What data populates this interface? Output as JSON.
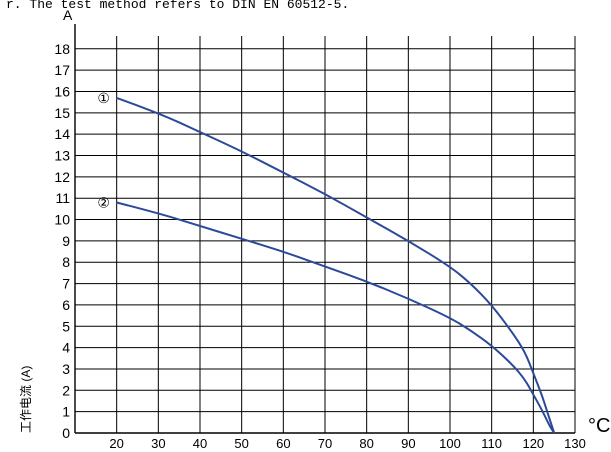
{
  "header_note": "r. The test method refers to DIN EN 60512-5.",
  "chart_data": {
    "type": "line",
    "y_unit_label": "A",
    "x_unit_label": "°C",
    "ylabel": "工作电流 (A)",
    "x_ticks": [
      20,
      30,
      40,
      50,
      60,
      70,
      80,
      90,
      100,
      110,
      120,
      130
    ],
    "y_ticks": [
      0,
      1,
      2,
      3,
      4,
      5,
      6,
      7,
      8,
      9,
      10,
      11,
      12,
      13,
      14,
      15,
      16,
      17,
      18
    ],
    "xlim": [
      10,
      130
    ],
    "ylim": [
      0,
      18.6
    ],
    "grid": true,
    "line_color": "#2b4a9a",
    "series": [
      {
        "name": "①",
        "x": [
          20,
          30,
          40,
          50,
          60,
          70,
          80,
          90,
          100,
          105,
          110,
          115,
          118,
          120,
          122,
          123,
          124,
          125
        ],
        "y": [
          15.7,
          15.0,
          14.1,
          13.2,
          12.2,
          11.2,
          10.1,
          9.0,
          7.8,
          7.0,
          6.0,
          4.7,
          3.8,
          2.8,
          1.8,
          1.2,
          0.6,
          0.0
        ]
      },
      {
        "name": "②",
        "x": [
          20,
          30,
          40,
          50,
          60,
          70,
          80,
          90,
          100,
          105,
          110,
          115,
          118,
          120,
          122,
          123,
          124,
          125
        ],
        "y": [
          10.8,
          10.3,
          9.7,
          9.1,
          8.5,
          7.8,
          7.1,
          6.3,
          5.4,
          4.8,
          4.1,
          3.2,
          2.5,
          1.8,
          1.1,
          0.7,
          0.3,
          0.0
        ]
      }
    ]
  }
}
